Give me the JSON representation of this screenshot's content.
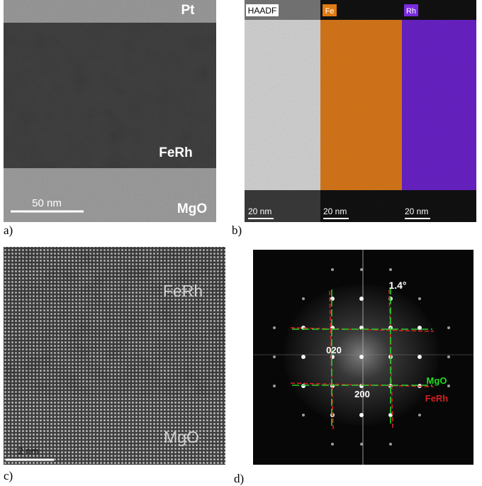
{
  "panels": [
    {
      "label": "a)",
      "annotations": [
        "Pt",
        "FeRh",
        "MgO"
      ],
      "scale_bar": "50 nm"
    },
    {
      "label": "b)",
      "channels": [
        "HAADF",
        "Fe",
        "Rh"
      ],
      "scale_bars": [
        "20 nm",
        "20 nm",
        "20 nm"
      ]
    },
    {
      "label": "c)",
      "annotations": [
        "FeRh",
        "MgO"
      ],
      "scale_bar": "2 nm"
    },
    {
      "label": "d)",
      "angle": "1.4°",
      "spots": [
        "020",
        "200"
      ],
      "legend": [
        "MgO",
        "FeRh"
      ]
    }
  ]
}
